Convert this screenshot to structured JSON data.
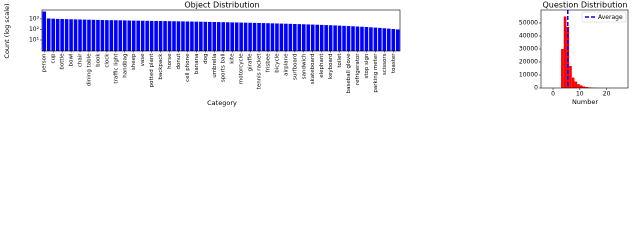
{
  "chart_data": [
    {
      "type": "bar",
      "title": "Object Distribution",
      "x_label": "Category",
      "y_label": "Count (log scale)",
      "log_scale": true,
      "color": "#0000ff",
      "categories": [
        "person",
        null,
        "cup",
        null,
        "bottle",
        null,
        "bowl",
        null,
        "chair",
        null,
        "dining table",
        null,
        "book",
        null,
        "clock",
        null,
        "traffic light",
        null,
        "handbag",
        null,
        "sheep",
        null,
        "vase",
        null,
        "potted plant",
        null,
        "backpack",
        null,
        "horse",
        null,
        "donut",
        null,
        "cell phone",
        null,
        "banana",
        null,
        "dog",
        null,
        "umbrella",
        null,
        "sports ball",
        null,
        "kite",
        null,
        "motorcycle",
        null,
        "giraffe",
        null,
        "tennis racket",
        null,
        "frisbee",
        null,
        "bicycle",
        null,
        "airplane",
        null,
        "surfboard",
        null,
        "sandwich",
        null,
        "skateboard",
        null,
        "elephant",
        null,
        "keyboard",
        null,
        "toilet",
        null,
        "baseball glove",
        null,
        "refrigerator",
        null,
        "stop sign",
        null,
        "parking meter",
        null,
        "scissors",
        null,
        "toaster",
        null
      ],
      "values": [
        5000,
        1100,
        1050,
        1000,
        980,
        950,
        920,
        900,
        880,
        860,
        840,
        820,
        800,
        780,
        770,
        760,
        750,
        740,
        720,
        700,
        690,
        680,
        670,
        660,
        650,
        640,
        630,
        620,
        610,
        600,
        590,
        580,
        570,
        560,
        550,
        540,
        530,
        520,
        510,
        500,
        490,
        480,
        470,
        460,
        450,
        440,
        430,
        420,
        410,
        400,
        390,
        380,
        370,
        360,
        350,
        340,
        330,
        320,
        310,
        300,
        290,
        280,
        270,
        260,
        250,
        240,
        230,
        220,
        210,
        200,
        190,
        180,
        170,
        160,
        150,
        140,
        130,
        120,
        110,
        100
      ],
      "ylim": [
        0.9,
        7000
      ],
      "yticks": [
        {
          "value": 10,
          "label": "10¹"
        },
        {
          "value": 100,
          "label": "10²"
        },
        {
          "value": 1000,
          "label": "10³"
        }
      ]
    },
    {
      "type": "histogram",
      "title": "Question Distribution",
      "x_label": "Number",
      "color": "#ff0000",
      "bins": [
        3,
        4,
        5,
        6,
        7,
        8,
        9,
        10,
        11,
        12,
        13,
        14,
        15,
        16,
        17,
        18,
        19,
        20
      ],
      "values": [
        30000,
        55000,
        47000,
        17000,
        8000,
        5000,
        3000,
        2000,
        1200,
        800,
        500,
        300,
        200,
        100,
        80,
        50,
        30
      ],
      "xlim": [
        -4.5,
        28
      ],
      "ylim": [
        0,
        60000
      ],
      "xticks": [
        0,
        10,
        20
      ],
      "yticks": [
        0,
        10000,
        20000,
        30000,
        40000,
        50000
      ],
      "average": {
        "name": "Average",
        "value": 5.5,
        "color": "#0000ff"
      },
      "legend": "upper right"
    }
  ]
}
